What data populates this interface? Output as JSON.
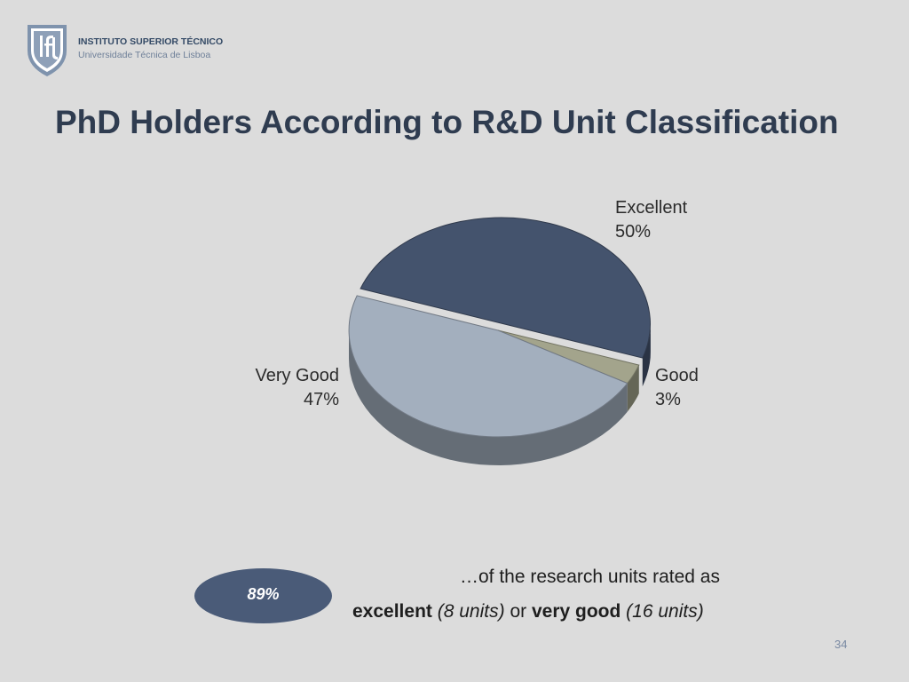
{
  "header": {
    "institution": "INSTITUTO SUPERIOR TÉCNICO",
    "university": "Universidade Técnica de Lisboa",
    "logo_icon": "ist-shield-logo-icon"
  },
  "slide": {
    "title": "PhD Holders According to R&D Unit Classification",
    "page_number": "34"
  },
  "chart_data": {
    "type": "pie",
    "title": "",
    "slices": [
      {
        "label": "Excellent",
        "percent_label": "50%",
        "value": 50,
        "color": "#44536d"
      },
      {
        "label": "Good",
        "percent_label": "3%",
        "value": 3,
        "color": "#a3a48c"
      },
      {
        "label": "Very Good",
        "percent_label": "47%",
        "value": 47,
        "color": "#a3afbe"
      }
    ],
    "style": "3d-tilted"
  },
  "callout": {
    "badge": "89%",
    "line1": "…of the research units rated as",
    "excellent": "excellent",
    "excellent_units": "(8 units)",
    "or": "or",
    "very_good": "very good",
    "very_good_units": "(16 units)"
  },
  "colors": {
    "background": "#dcdcdc",
    "title": "#2f3c50",
    "badge": "#4a5b78"
  }
}
